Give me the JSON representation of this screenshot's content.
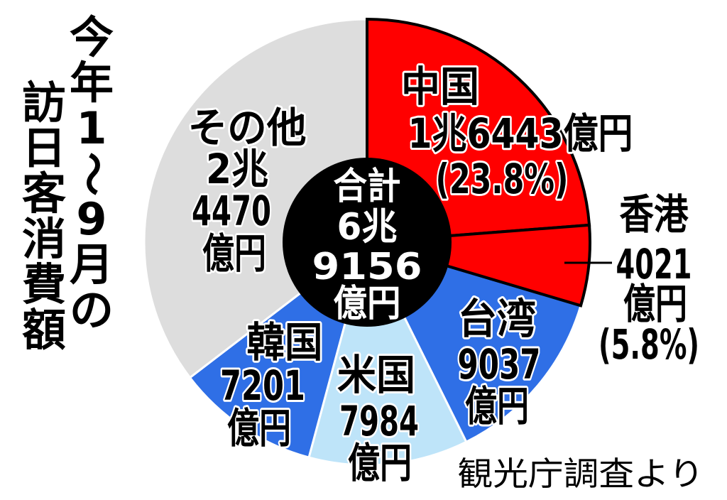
{
  "chart_data": {
    "type": "pie",
    "title": "今年1～9月の訪日客消費額",
    "center_label": [
      "合計",
      "6兆",
      "9156",
      "億円"
    ],
    "center_color": "#000000",
    "slices": [
      {
        "name": "中国",
        "value": 16443,
        "label_lines": [
          "1兆6443億円",
          "(23.8%)"
        ],
        "color": "#ff0000"
      },
      {
        "name": "香港",
        "value": 4021,
        "label_lines": [
          "4021",
          "億円",
          "(5.8%)"
        ],
        "color": "#ff0000"
      },
      {
        "name": "台湾",
        "value": 9037,
        "label_lines": [
          "9037",
          "億円"
        ],
        "color": "#2f6fe6"
      },
      {
        "name": "米国",
        "value": 7984,
        "label_lines": [
          "7984",
          "億円"
        ],
        "color": "#bee4f9"
      },
      {
        "name": "韓国",
        "value": 7201,
        "label_lines": [
          "7201",
          "億円"
        ],
        "color": "#2f6fe6"
      },
      {
        "name": "その他",
        "value": 24470,
        "label_lines": [
          "2兆",
          "4470",
          "億円"
        ],
        "color": "#dddddd"
      }
    ],
    "source": "観光庁調査より"
  }
}
